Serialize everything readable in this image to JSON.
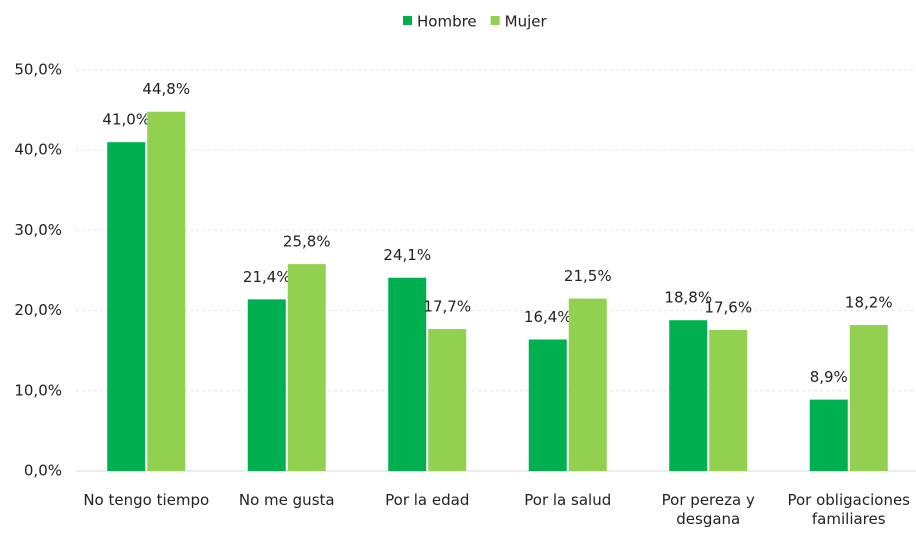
{
  "chart_data": {
    "type": "bar",
    "categories": [
      "No tengo tiempo",
      "No me gusta",
      "Por la edad",
      "Por la salud",
      "Por pereza y desgana",
      "Por obligaciones familiares"
    ],
    "series": [
      {
        "name": "Hombre",
        "color": "#00b050",
        "values": [
          41.0,
          21.4,
          24.1,
          16.4,
          18.8,
          8.9
        ],
        "value_labels": [
          "41,0%",
          "21,4%",
          "24,1%",
          "16,4%",
          "18,8%",
          "8,9%"
        ]
      },
      {
        "name": "Mujer",
        "color": "#92d050",
        "values": [
          44.8,
          25.8,
          17.7,
          21.5,
          17.6,
          18.2
        ],
        "value_labels": [
          "44,8%",
          "25,8%",
          "17,7%",
          "21,5%",
          "17,6%",
          "18,2%"
        ]
      }
    ],
    "ylim": [
      0,
      50
    ],
    "yticks": [
      {
        "value": 0,
        "label": "0,0%"
      },
      {
        "value": 10,
        "label": "10,0%"
      },
      {
        "value": 20,
        "label": "20,0%"
      },
      {
        "value": 30,
        "label": "30,0%"
      },
      {
        "value": 40,
        "label": "40,0%"
      },
      {
        "value": 50,
        "label": "50,0%"
      }
    ],
    "grid": true,
    "legend": "top"
  }
}
